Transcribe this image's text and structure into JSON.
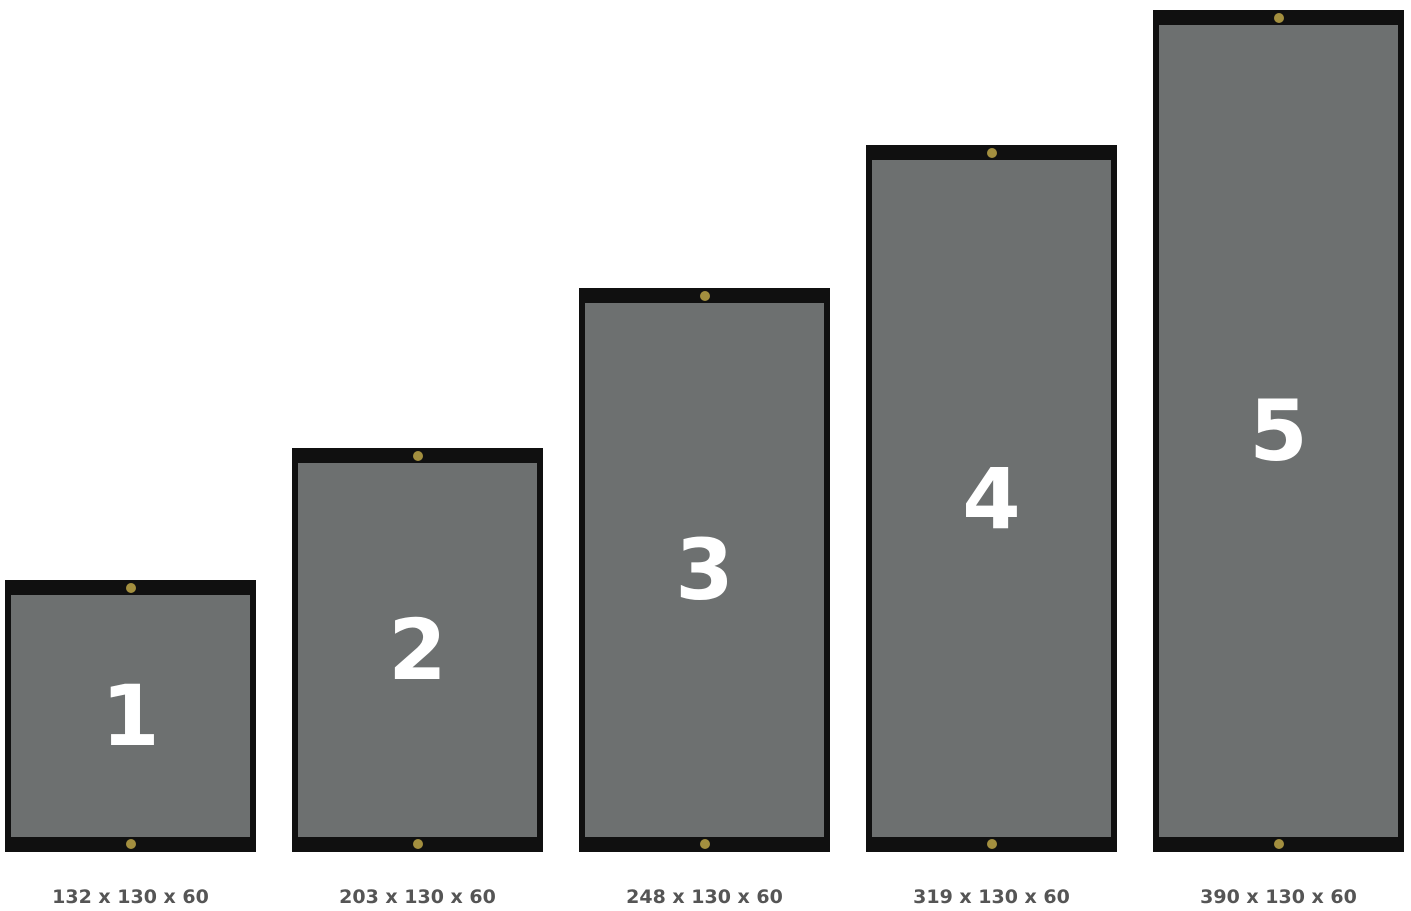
{
  "colors": {
    "frame": "#101010",
    "panel_face": "#6d7070",
    "grommet": "#a38f3f",
    "number_text": "#ffffff",
    "label_text": "#555555"
  },
  "panels": [
    {
      "number": "1",
      "dimensions": "132 x 130 x 60"
    },
    {
      "number": "2",
      "dimensions": "203 x 130 x 60"
    },
    {
      "number": "3",
      "dimensions": "248 x 130 x 60"
    },
    {
      "number": "4",
      "dimensions": "319 x 130 x 60"
    },
    {
      "number": "5",
      "dimensions": "390 x 130 x 60"
    }
  ]
}
